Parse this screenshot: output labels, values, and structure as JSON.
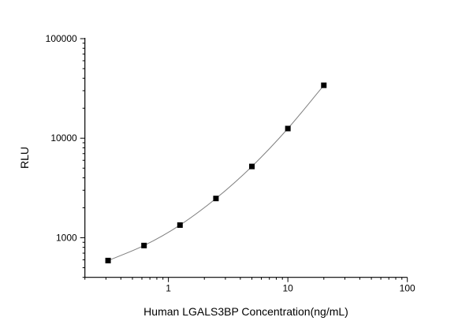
{
  "chart_data": {
    "type": "line",
    "title": "",
    "xlabel": "Human LGALS3BP Concentration(ng/mL)",
    "ylabel": "RLU",
    "xscale": "log",
    "yscale": "log",
    "xlim": [
      0.2,
      100
    ],
    "ylim": [
      400,
      100000
    ],
    "xticks": [
      1,
      10,
      100
    ],
    "xtick_labels": [
      "1",
      "10",
      "100"
    ],
    "yticks": [
      1000,
      10000,
      100000
    ],
    "ytick_labels": [
      "1000",
      "10000",
      "100000"
    ],
    "grid": false,
    "marker": "square",
    "colors": {
      "marker": "#000000",
      "line": "#808080",
      "axis": "#000000"
    },
    "series": [
      {
        "x": [
          0.3125,
          0.625,
          1.25,
          2.5,
          5,
          10,
          20
        ],
        "y": [
          590,
          835,
          1340,
          2480,
          5200,
          12500,
          34000
        ]
      }
    ]
  }
}
